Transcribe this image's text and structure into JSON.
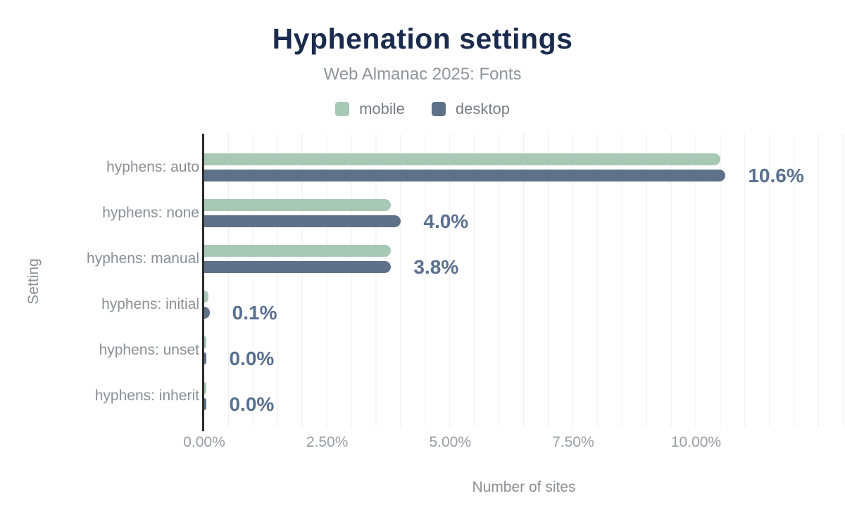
{
  "title": "Hyphenation settings",
  "subtitle": "Web Almanac 2025: Fonts",
  "legend": [
    {
      "label": "mobile",
      "color": "#a8c8b6"
    },
    {
      "label": "desktop",
      "color": "#5f7189"
    }
  ],
  "colors": {
    "mobile_bar": "#a8c8b6",
    "desktop_bar": "#5f7189",
    "value_label": "#5a7090",
    "title_text": "#1b2b4d",
    "axis_line": "#2b2b2b",
    "gridline": "#ededed",
    "muted_text": "#8a9096"
  },
  "chart_data": {
    "type": "bar",
    "orientation": "horizontal",
    "title": "Hyphenation settings",
    "subtitle": "Web Almanac 2025: Fonts",
    "xlabel": "Number of sites",
    "ylabel": "Setting",
    "categories": [
      "hyphens: auto",
      "hyphens: none",
      "hyphens: manual",
      "hyphens: initial",
      "hyphens: unset",
      "hyphens: inherit"
    ],
    "series": [
      {
        "name": "mobile",
        "color": "#a8c8b6",
        "values": [
          10.5,
          3.8,
          3.8,
          0.08,
          0.04,
          0.04
        ]
      },
      {
        "name": "desktop",
        "color": "#5f7189",
        "values": [
          10.6,
          4.0,
          3.8,
          0.11,
          0.05,
          0.05
        ]
      }
    ],
    "value_labels": [
      "10.6%",
      "4.0%",
      "3.8%",
      "0.1%",
      "0.0%",
      "0.0%"
    ],
    "x_tick_values": [
      0,
      2.5,
      5,
      7.5,
      10
    ],
    "x_tick_labels": [
      "0.00%",
      "2.50%",
      "5.00%",
      "7.50%",
      "10.00%"
    ],
    "xlim": [
      0,
      13
    ],
    "grid": "vertical, minor every 0.5%",
    "legend_position": "top"
  }
}
